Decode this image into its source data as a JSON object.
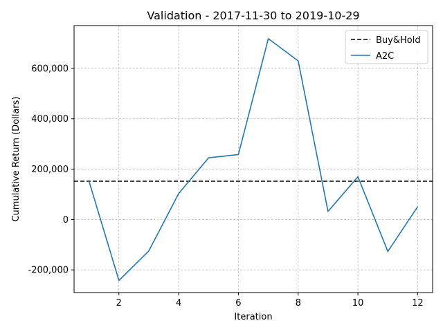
{
  "chart_data": {
    "type": "line",
    "title": "Validation - 2017-11-30 to 2019-10-29",
    "xlabel": "Iteration",
    "ylabel": "Cumulative Return (Dollars)",
    "xlim": [
      0.5,
      12.5
    ],
    "ylim": [
      -290000,
      770000
    ],
    "xticks": [
      2,
      4,
      6,
      8,
      10,
      12
    ],
    "xtick_labels": [
      "2",
      "4",
      "6",
      "8",
      "10",
      "12"
    ],
    "yticks": [
      -200000,
      0,
      200000,
      400000,
      600000
    ],
    "ytick_labels": [
      "-200,000",
      "0",
      "200,000",
      "400,000",
      "600,000"
    ],
    "grid": true,
    "legend_position": "top-right",
    "series": [
      {
        "name": "Buy&Hold",
        "style": "dashed",
        "color": "#000000",
        "x": [
          0.5,
          12.5
        ],
        "values": [
          152000,
          152000
        ]
      },
      {
        "name": "A2C",
        "style": "solid",
        "color": "#1f77b4",
        "x": [
          1,
          2,
          3,
          4,
          5,
          6,
          7,
          8,
          9,
          10,
          11,
          12
        ],
        "values": [
          152000,
          -242000,
          -125000,
          103000,
          245000,
          258000,
          718000,
          630000,
          32000,
          170000,
          -127000,
          51000
        ]
      }
    ]
  }
}
